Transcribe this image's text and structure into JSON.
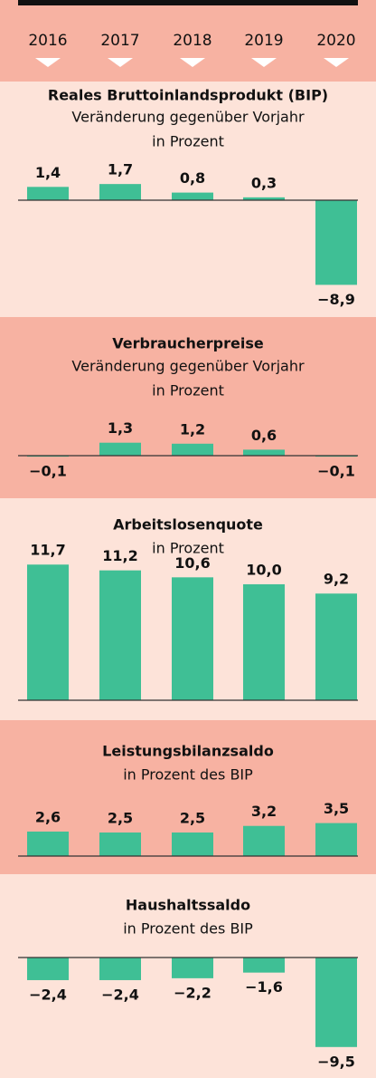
{
  "header": {
    "years": [
      "2016",
      "2017",
      "2018",
      "2019",
      "2020"
    ]
  },
  "chart_data": [
    {
      "type": "bar",
      "title": "Reales Bruttoinlandsprodukt (BIP)",
      "subtitle": [
        "Veränderung gegenüber Vorjahr",
        "in Prozent"
      ],
      "values": [
        1.4,
        1.7,
        0.8,
        0.3,
        -8.9
      ],
      "value_labels": [
        "1,4",
        "1,7",
        "0,8",
        "0,3",
        "−8,9"
      ],
      "color": "#3fbf95"
    },
    {
      "type": "bar",
      "title": "Verbraucherpreise",
      "subtitle": [
        "Veränderung gegenüber Vorjahr",
        "in Prozent"
      ],
      "values": [
        -0.1,
        1.3,
        1.2,
        0.6,
        -0.1
      ],
      "value_labels": [
        "−0,1",
        "1,3",
        "1,2",
        "0,6",
        "−0,1"
      ],
      "color": "#3fbf95"
    },
    {
      "type": "bar",
      "title": "Arbeitslosenquote",
      "subtitle": [
        "in Prozent"
      ],
      "values": [
        11.7,
        11.2,
        10.6,
        10.0,
        9.2
      ],
      "value_labels": [
        "11,7",
        "11,2",
        "10,6",
        "10,0",
        "9,2"
      ],
      "color": "#3fbf95"
    },
    {
      "type": "bar",
      "title": "Leistungsbilanzsaldo",
      "subtitle": [
        "in Prozent des BIP"
      ],
      "values": [
        2.6,
        2.5,
        2.5,
        3.2,
        3.5
      ],
      "value_labels": [
        "2,6",
        "2,5",
        "2,5",
        "3,2",
        "3,5"
      ],
      "color": "#3fbf95"
    },
    {
      "type": "bar",
      "title": "Haushaltssaldo",
      "subtitle": [
        "in Prozent des BIP"
      ],
      "values": [
        -2.4,
        -2.4,
        -2.2,
        -1.6,
        -9.5
      ],
      "value_labels": [
        "−2,4",
        "−2,4",
        "−2,2",
        "−1,6",
        "−9,5"
      ],
      "color": "#3fbf95"
    }
  ]
}
